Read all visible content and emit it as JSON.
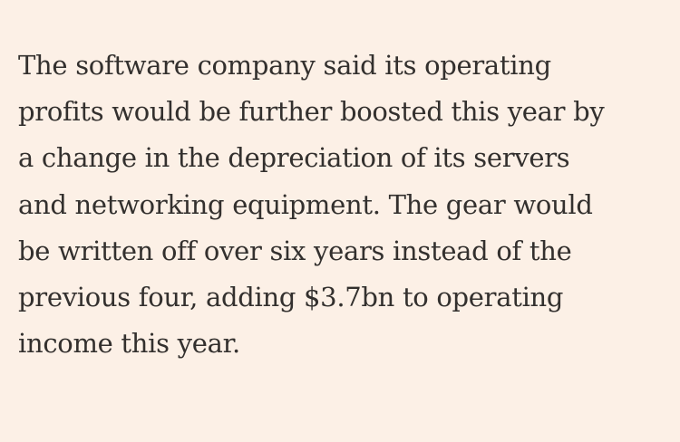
{
  "colors": {
    "background": "#fcf0e6",
    "text": "#33302e"
  },
  "article": {
    "paragraph_lines": [
      "The software company said its operating",
      "profits would be further boosted this year by",
      "a change in the depreciation of its servers",
      "and networking equipment. The gear would",
      "be written off over six years instead of the",
      "previous four, adding $3.7bn to operating",
      "income this year."
    ]
  }
}
